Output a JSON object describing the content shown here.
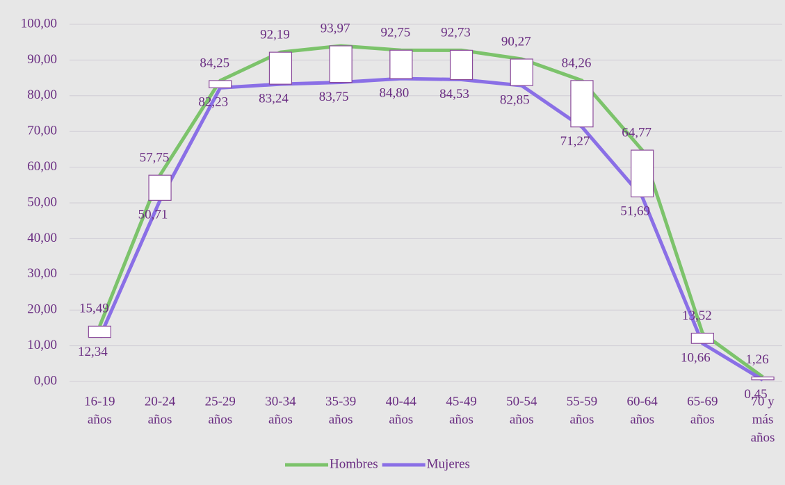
{
  "chart_data": {
    "type": "line",
    "categories": [
      [
        "16-19",
        "años"
      ],
      [
        "20-24",
        "años"
      ],
      [
        "25-29",
        "años"
      ],
      [
        "30-34",
        "años"
      ],
      [
        "35-39",
        "años"
      ],
      [
        "40-44",
        "años"
      ],
      [
        "45-49",
        "años"
      ],
      [
        "50-54",
        "años"
      ],
      [
        "55-59",
        "años"
      ],
      [
        "60-64",
        "años"
      ],
      [
        "65-69",
        "años"
      ],
      [
        "70 y",
        "más",
        "años"
      ]
    ],
    "series": [
      {
        "name": "Hombres",
        "color": "#7cc36b",
        "values": [
          15.49,
          57.75,
          84.25,
          92.19,
          93.97,
          92.75,
          92.73,
          90.27,
          84.26,
          64.77,
          13.52,
          1.26
        ],
        "value_labels": [
          "15,49",
          "57,75",
          "84,25",
          "92,19",
          "93,97",
          "92,75",
          "92,73",
          "90,27",
          "84,26",
          "64,77",
          "13,52",
          "1,26"
        ]
      },
      {
        "name": "Mujeres",
        "color": "#8a6fe6",
        "values": [
          12.34,
          50.71,
          82.23,
          83.24,
          83.75,
          84.8,
          84.53,
          82.85,
          71.27,
          51.69,
          10.66,
          0.45
        ],
        "value_labels": [
          "12,34",
          "50,71",
          "82,23",
          "83,24",
          "83,75",
          "84,80",
          "84,53",
          "82,85",
          "71,27",
          "51,69",
          "10,66",
          "0,45"
        ]
      }
    ],
    "ylim": [
      0,
      100
    ],
    "yticks": [
      {
        "value": 0,
        "label": "0,00"
      },
      {
        "value": 10,
        "label": "10,00"
      },
      {
        "value": 20,
        "label": "20,00"
      },
      {
        "value": 30,
        "label": "30,00"
      },
      {
        "value": 40,
        "label": "40,00"
      },
      {
        "value": 50,
        "label": "50,00"
      },
      {
        "value": 60,
        "label": "60,00"
      },
      {
        "value": 70,
        "label": "70,00"
      },
      {
        "value": 80,
        "label": "80,00"
      },
      {
        "value": 90,
        "label": "90,00"
      },
      {
        "value": 100,
        "label": "100,00"
      }
    ],
    "grid": true,
    "up_down_bars": true,
    "legend": "bottom"
  }
}
